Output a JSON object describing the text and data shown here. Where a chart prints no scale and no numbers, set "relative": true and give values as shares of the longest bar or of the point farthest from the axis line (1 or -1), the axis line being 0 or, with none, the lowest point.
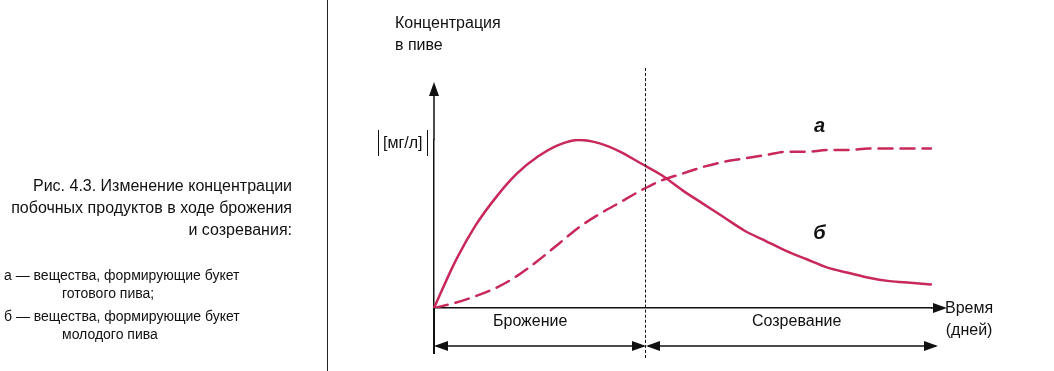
{
  "chart_data": {
    "type": "line",
    "relative": true,
    "title": "Рис. 4.3. Изменение концентрации побочных продуктов в ходе брожения и созревания:",
    "xlabel": "Время (дней)",
    "annotations": [
      "Концентрация в пиве",
      "[мг/л]",
      "Брожение",
      "Созревание",
      "а — вещества, формирующие букет готового пива;",
      "б — вещества, формирующие букет молодого пива"
    ],
    "categories": [
      null,
      null,
      null,
      null,
      null,
      null,
      null,
      null,
      null,
      null,
      null,
      null,
      null,
      null,
      null,
      null,
      null,
      null,
      null,
      null,
      null,
      null,
      null,
      null,
      null
    ],
    "series": [
      {
        "name": "а",
        "color": "#c8285a",
        "line_style": "dashed",
        "values": [
          0,
          0.03,
          0.07,
          0.12,
          0.19,
          0.28,
          0.38,
          0.48,
          0.56,
          0.63,
          0.7,
          0.76,
          0.8,
          0.84,
          0.87,
          0.89,
          0.91,
          0.93,
          0.93,
          0.94,
          0.94,
          0.95,
          0.95,
          0.95,
          0.95
        ]
      },
      {
        "name": "б",
        "color": "#c8285a",
        "line_style": "solid",
        "values": [
          0,
          0.27,
          0.49,
          0.66,
          0.8,
          0.9,
          0.97,
          1,
          0.98,
          0.93,
          0.86,
          0.79,
          0.7,
          0.62,
          0.54,
          0.46,
          0.4,
          0.34,
          0.29,
          0.24,
          0.21,
          0.18,
          0.16,
          0.15,
          0.14
        ]
      }
    ],
    "grid": false,
    "legend": false,
    "tick_labels": false,
    "marker": "none"
  }
}
